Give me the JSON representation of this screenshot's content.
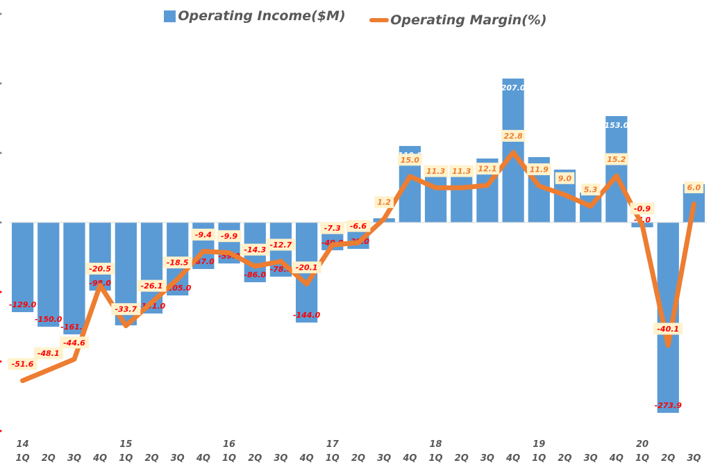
{
  "chart_data": {
    "type": "bar+line",
    "title": "",
    "legend": {
      "position": "top",
      "entries": [
        {
          "name": "Operating Income($M)",
          "type": "bar",
          "color": "#5B9BD5"
        },
        {
          "name": "Operating Margin(%)",
          "type": "line",
          "color": "#ED7D31"
        }
      ]
    },
    "year_labels": [
      {
        "index": 0,
        "label": "14"
      },
      {
        "index": 4,
        "label": "15"
      },
      {
        "index": 8,
        "label": "16"
      },
      {
        "index": 12,
        "label": "17"
      },
      {
        "index": 16,
        "label": "18"
      },
      {
        "index": 20,
        "label": "19"
      },
      {
        "index": 24,
        "label": "20"
      }
    ],
    "categories": [
      "1Q",
      "2Q",
      "3Q",
      "4Q",
      "1Q",
      "2Q",
      "3Q",
      "4Q",
      "1Q",
      "2Q",
      "3Q",
      "4Q",
      "1Q",
      "2Q",
      "3Q",
      "4Q",
      "1Q",
      "2Q",
      "3Q",
      "4Q",
      "1Q",
      "2Q",
      "3Q",
      "4Q",
      "1Q",
      "2Q",
      "3Q"
    ],
    "series": [
      {
        "name": "Operating Income($M)",
        "type": "bar",
        "axis": "left",
        "color": "#5B9BD5",
        "values": [
          -129.0,
          -150.0,
          -161.0,
          -98.0,
          -148.0,
          -131.0,
          -105.0,
          -67.0,
          -59.0,
          -86.0,
          -78.0,
          -144.0,
          -40.0,
          -38.0,
          6.0,
          110.0,
          73.0,
          79.0,
          92.0,
          207.0,
          94.0,
          76.0,
          43.0,
          153.0,
          -7.0,
          -273.9,
          55.0
        ],
        "labels": [
          "-129.0",
          "-150.0",
          "-161.0",
          "-98.0",
          "",
          "-131.0",
          "-105.0",
          "-67.0",
          "-59.0",
          "-86.0",
          "-78.0",
          "-144.0",
          "-40.0",
          "-38.0",
          "",
          "110.0",
          "",
          "",
          "92.0",
          "207.0",
          "94.0",
          "76.0",
          "",
          "153.0",
          "-7.0",
          "-273.9",
          ""
        ]
      },
      {
        "name": "Operating Margin(%)",
        "type": "line",
        "axis": "right",
        "color": "#ED7D31",
        "values": [
          -51.6,
          -48.1,
          -44.6,
          -20.5,
          -33.7,
          -26.1,
          -18.5,
          -9.4,
          -9.9,
          -14.3,
          -12.7,
          -20.1,
          -7.3,
          -6.6,
          1.2,
          15.0,
          11.3,
          11.3,
          12.1,
          22.8,
          11.9,
          9.0,
          5.3,
          15.2,
          -0.9,
          -40.1,
          6.0
        ],
        "labels": [
          "-51.6",
          "-48.1",
          "-44.6",
          "-20.5",
          "-33.7",
          "-26.1",
          "-18.5",
          "-9.4",
          "-9.9",
          "-14.3",
          "-12.7",
          "-20.1",
          "-7.3",
          "-6.6",
          "1.2",
          "15.0",
          "11.3",
          "11.3",
          "12.1",
          "22.8",
          "11.9",
          "9.0",
          "5.3",
          "15.2",
          "-0.9",
          "-40.1",
          "6.0"
        ]
      }
    ],
    "left_axis": {
      "ylim": [
        -300,
        300
      ],
      "ticks": [
        -300,
        -200,
        -100,
        0,
        100,
        200,
        300
      ],
      "tick_labels_visible": false
    },
    "right_axis": {
      "ylim": [
        -68,
        68
      ]
    },
    "grid": false,
    "xlabel": "",
    "ylabel": ""
  }
}
